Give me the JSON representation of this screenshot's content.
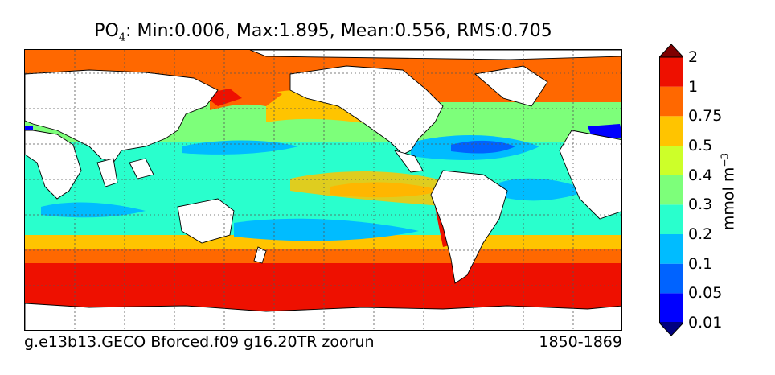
{
  "title": {
    "species": "PO",
    "subscript": "4",
    "stats": ": Min:0.006, Max:1.895, Mean:0.556, RMS:0.705"
  },
  "footer": {
    "case_name": "g.e13b13.GECO Bforced.f09 g16.20TR zoorun",
    "years": "1850-1869"
  },
  "colorbar": {
    "unit_base": "mmol m",
    "unit_exponent": "−3",
    "levels": [
      "0.01",
      "0.05",
      "0.1",
      "0.2",
      "0.3",
      "0.4",
      "0.5",
      "0.75",
      "1",
      "2"
    ],
    "colors": [
      "#00007f",
      "#0000ff",
      "#0063ff",
      "#00bcff",
      "#29ffcd",
      "#7dff7a",
      "#cdff29",
      "#ffc400",
      "#ff6800",
      "#ee1000",
      "#7f0000"
    ]
  },
  "map": {
    "land_color": "#ffffff",
    "gridlines": true,
    "grid_style": "dotted"
  }
}
